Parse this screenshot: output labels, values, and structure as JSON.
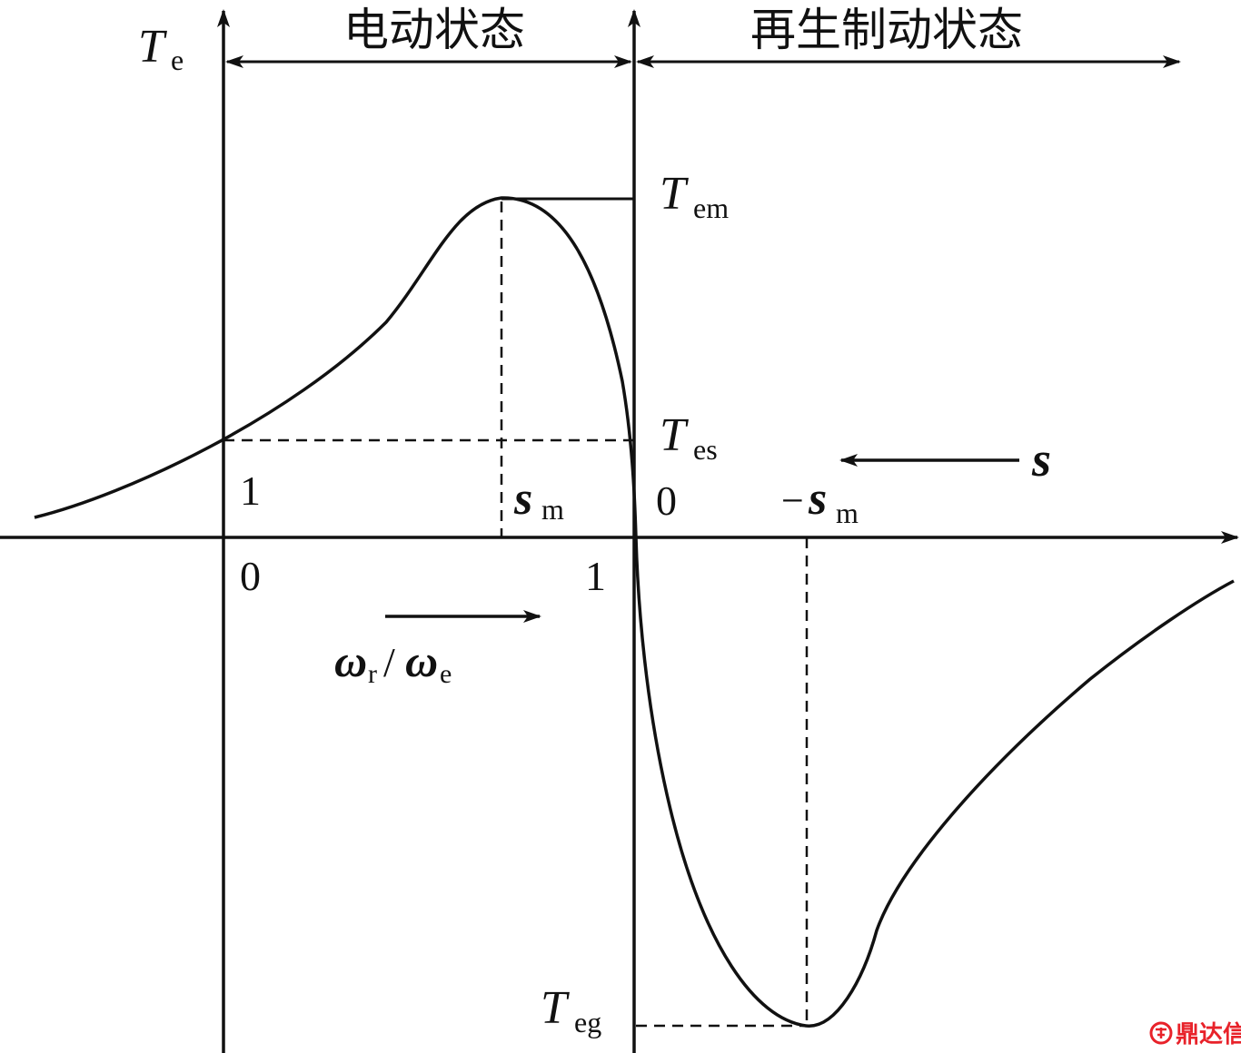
{
  "regions": {
    "motoring": "电动状态",
    "regenerative": "再生制动状态"
  },
  "axis": {
    "torque_symbol": "T",
    "torque_sub": "e",
    "slip_symbol": "s",
    "speed_ratio": {
      "omega": "ω",
      "num_sub": "r",
      "slash": "/",
      "den_sub": "e"
    }
  },
  "labels": {
    "T_em": {
      "main": "T",
      "sub": "em"
    },
    "T_es": {
      "main": "T",
      "sub": "es"
    },
    "T_eg": {
      "main": "T",
      "sub": "eg"
    },
    "s_m": {
      "main": "s",
      "sub": "m"
    },
    "neg_s_m": {
      "sign": "−",
      "main": "s",
      "sub": "m"
    }
  },
  "ticks": {
    "slip_one": "1",
    "slip_zero": "0",
    "speed_zero": "0",
    "speed_one": "1"
  },
  "watermark": {
    "text": "鼎达信",
    "color": "#e8222a"
  },
  "colors": {
    "ink": "#111111"
  }
}
